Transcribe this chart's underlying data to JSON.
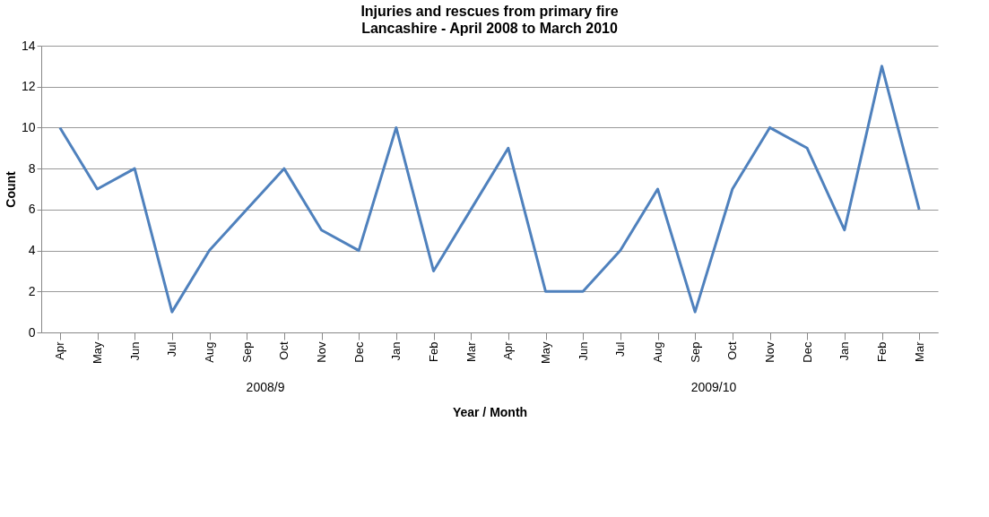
{
  "chart_data": {
    "type": "line",
    "title": "Injuries and rescues from primary fire",
    "subtitle": "Lancashire - April 2008 to March 2010",
    "xlabel": "Year / Month",
    "ylabel": "Count",
    "categories": [
      "Apr",
      "May",
      "Jun",
      "Jul",
      "Aug",
      "Sep",
      "Oct",
      "Nov",
      "Dec",
      "Jan",
      "Feb",
      "Mar",
      "Apr",
      "May",
      "Jun",
      "Jul",
      "Aug",
      "Sep",
      "Oct",
      "Nov",
      "Dec",
      "Jan",
      "Feb",
      "Mar"
    ],
    "series": [
      {
        "color": "#4f81bd",
        "values": [
          10,
          7,
          8,
          1,
          4,
          6,
          8,
          5,
          4,
          10,
          3,
          6,
          9,
          2,
          2,
          4,
          7,
          1,
          7,
          10,
          9,
          5,
          13,
          6
        ]
      }
    ],
    "ylim": [
      0,
      14
    ],
    "yticks": [
      0,
      2,
      4,
      6,
      8,
      10,
      12,
      14
    ],
    "grid": "y",
    "marker": "none",
    "line_style": "solid",
    "annotations": [
      "2008/9",
      "2009/10"
    ]
  }
}
